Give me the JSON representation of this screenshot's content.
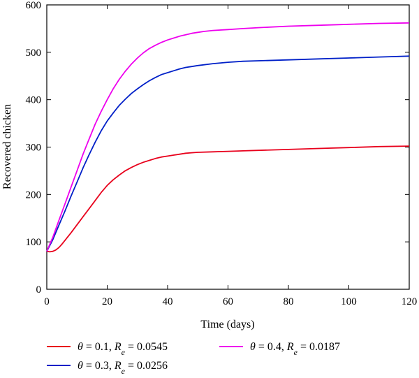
{
  "chart_data": {
    "type": "line",
    "xlabel": "Time (days)",
    "ylabel": "Recovered chicken",
    "xlim": [
      0,
      120
    ],
    "ylim": [
      0,
      600
    ],
    "xticks": [
      0,
      20,
      40,
      60,
      80,
      100,
      120
    ],
    "yticks": [
      0,
      100,
      200,
      300,
      400,
      500,
      600
    ],
    "grid": false,
    "legend_position": "bottom",
    "series": [
      {
        "name": "θ = 0.1, Re = 0.0545",
        "legend": {
          "theta_sym": "θ",
          "theta_val": " = 0.1, ",
          "r_sym": "R",
          "r_sub": "e",
          "r_val": " = 0.0545"
        },
        "color": "#e8001c",
        "x": [
          0,
          1,
          2,
          3,
          4,
          5,
          6,
          8,
          10,
          12,
          14,
          16,
          18,
          20,
          22,
          24,
          26,
          28,
          30,
          32,
          34,
          36,
          38,
          40,
          42,
          44,
          46,
          48,
          50,
          55,
          60,
          65,
          70,
          80,
          90,
          100,
          110,
          120
        ],
        "y": [
          80,
          79,
          80,
          83,
          88,
          95,
          103,
          119,
          136,
          153,
          170,
          187,
          204,
          219,
          231,
          241,
          250,
          257,
          263,
          268,
          272,
          276,
          279,
          281,
          283,
          285,
          287,
          288,
          289,
          290,
          291,
          292,
          293,
          295,
          297,
          299,
          301,
          302
        ]
      },
      {
        "name": "θ = 0.3, Re = 0.0256",
        "legend": {
          "theta_sym": "θ",
          "theta_val": " = 0.3, ",
          "r_sym": "R",
          "r_sub": "e",
          "r_val": " = 0.0256"
        },
        "color": "#0020c8",
        "x": [
          0,
          2,
          4,
          6,
          8,
          10,
          12,
          14,
          16,
          18,
          20,
          22,
          24,
          26,
          28,
          30,
          32,
          34,
          36,
          38,
          40,
          42,
          44,
          46,
          48,
          50,
          55,
          60,
          65,
          70,
          80,
          90,
          100,
          110,
          120
        ],
        "y": [
          80,
          105,
          135,
          165,
          196,
          226,
          256,
          284,
          310,
          334,
          355,
          372,
          388,
          401,
          413,
          423,
          432,
          440,
          447,
          453,
          457,
          461,
          465,
          468,
          470,
          472,
          476,
          479,
          481,
          482,
          484,
          486,
          488,
          490,
          492
        ]
      },
      {
        "name": "θ = 0.4, Re = 0.0187",
        "legend": {
          "theta_sym": "θ",
          "theta_val": " = 0.4, ",
          "r_sym": "R",
          "r_sub": "e",
          "r_val": " = 0.0187"
        },
        "color": "#ee00ee",
        "x": [
          0,
          2,
          4,
          6,
          8,
          10,
          12,
          14,
          16,
          18,
          20,
          22,
          24,
          26,
          28,
          30,
          32,
          34,
          36,
          38,
          40,
          42,
          44,
          46,
          48,
          50,
          52,
          55,
          60,
          65,
          70,
          80,
          90,
          100,
          110,
          120
        ],
        "y": [
          80,
          110,
          145,
          180,
          215,
          250,
          285,
          317,
          348,
          375,
          400,
          423,
          443,
          460,
          475,
          488,
          499,
          508,
          515,
          521,
          526,
          530,
          534,
          537,
          540,
          542,
          544,
          546,
          548,
          550,
          552,
          555,
          557,
          559,
          561,
          562
        ]
      }
    ]
  }
}
